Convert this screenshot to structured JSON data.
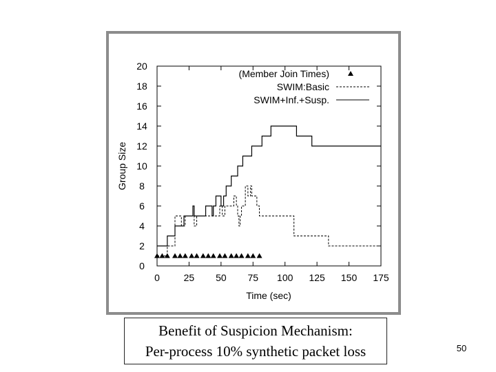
{
  "chart_data": {
    "type": "line",
    "xlabel": "Time (sec)",
    "ylabel": "Group Size",
    "xlim": [
      0,
      175
    ],
    "ylim": [
      0,
      20
    ],
    "x_ticks": [
      "0",
      "25",
      "50",
      "75",
      "100",
      "125",
      "150",
      "175"
    ],
    "y_ticks": [
      "0",
      "2",
      "4",
      "6",
      "8",
      "10",
      "12",
      "14",
      "16",
      "18",
      "20"
    ],
    "grid": false,
    "legend": "top-right",
    "series": [
      {
        "name": "SWIM:Basic",
        "style": "dashed",
        "points": [
          [
            0,
            1
          ],
          [
            8,
            1
          ],
          [
            8,
            2
          ],
          [
            14,
            2
          ],
          [
            14,
            5
          ],
          [
            19,
            5
          ],
          [
            19,
            4
          ],
          [
            22,
            4
          ],
          [
            22,
            5
          ],
          [
            29,
            5
          ],
          [
            29,
            4
          ],
          [
            31,
            4
          ],
          [
            31,
            5
          ],
          [
            49,
            5
          ],
          [
            49,
            6
          ],
          [
            51,
            6
          ],
          [
            51,
            5
          ],
          [
            53,
            5
          ],
          [
            53,
            6
          ],
          [
            60,
            6
          ],
          [
            60,
            7
          ],
          [
            62,
            7
          ],
          [
            62,
            6
          ],
          [
            63,
            6
          ],
          [
            63,
            5
          ],
          [
            64,
            5
          ],
          [
            64,
            4
          ],
          [
            65,
            4
          ],
          [
            65,
            5
          ],
          [
            66,
            5
          ],
          [
            66,
            6
          ],
          [
            69,
            6
          ],
          [
            69,
            8
          ],
          [
            71,
            8
          ],
          [
            71,
            7
          ],
          [
            73,
            7
          ],
          [
            73,
            8
          ],
          [
            74,
            8
          ],
          [
            74,
            7
          ],
          [
            78,
            7
          ],
          [
            78,
            6
          ],
          [
            80,
            6
          ],
          [
            80,
            5
          ],
          [
            107,
            5
          ],
          [
            107,
            3
          ],
          [
            134,
            3
          ],
          [
            134,
            2
          ],
          [
            175,
            2
          ]
        ]
      },
      {
        "name": "SWIM+Inf.+Susp.",
        "style": "solid",
        "points": [
          [
            0,
            2
          ],
          [
            8,
            2
          ],
          [
            8,
            3
          ],
          [
            14,
            3
          ],
          [
            14,
            4
          ],
          [
            21,
            4
          ],
          [
            21,
            5
          ],
          [
            28,
            5
          ],
          [
            28,
            6
          ],
          [
            29,
            6
          ],
          [
            29,
            5
          ],
          [
            38,
            5
          ],
          [
            38,
            6
          ],
          [
            43,
            6
          ],
          [
            43,
            5
          ],
          [
            44,
            5
          ],
          [
            44,
            6
          ],
          [
            46,
            6
          ],
          [
            46,
            7
          ],
          [
            50,
            7
          ],
          [
            50,
            6
          ],
          [
            52,
            6
          ],
          [
            52,
            7
          ],
          [
            54,
            7
          ],
          [
            54,
            8
          ],
          [
            58,
            8
          ],
          [
            58,
            9
          ],
          [
            63,
            9
          ],
          [
            63,
            10
          ],
          [
            67,
            10
          ],
          [
            67,
            11
          ],
          [
            74,
            11
          ],
          [
            74,
            12
          ],
          [
            82,
            12
          ],
          [
            82,
            13
          ],
          [
            89,
            13
          ],
          [
            89,
            14
          ],
          [
            109,
            14
          ],
          [
            109,
            13
          ],
          [
            121,
            13
          ],
          [
            121,
            12
          ],
          [
            175,
            12
          ]
        ]
      },
      {
        "name": "(Member Join Times)",
        "style": "marker",
        "points": [
          [
            0,
            1
          ],
          [
            4,
            1
          ],
          [
            8,
            1
          ],
          [
            14,
            1
          ],
          [
            18,
            1
          ],
          [
            22,
            1
          ],
          [
            27,
            1
          ],
          [
            31,
            1
          ],
          [
            36,
            1
          ],
          [
            40,
            1
          ],
          [
            44,
            1
          ],
          [
            49,
            1
          ],
          [
            53,
            1
          ],
          [
            58,
            1
          ],
          [
            62,
            1
          ],
          [
            66,
            1
          ],
          [
            71,
            1
          ],
          [
            75,
            1
          ],
          [
            80,
            1
          ]
        ]
      }
    ]
  },
  "caption": {
    "line1": "Benefit of Suspicion Mechanism:",
    "line2": "Per-process 10% synthetic packet loss"
  },
  "page_number": "50"
}
